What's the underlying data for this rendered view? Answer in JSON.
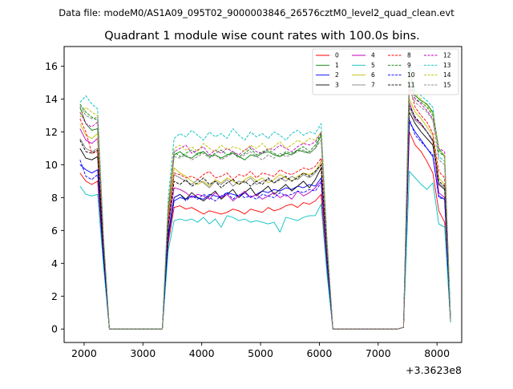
{
  "chart_data": {
    "type": "line",
    "suptitle": "Data file: modeM0/AS1A09_095T02_9000003846_26576cztM0_level2_quad_clean.evt",
    "title": "Quadrant 1 module wise count rates with 100.0s bins.",
    "xlabel": "",
    "ylabel": "",
    "x_offset_label": "+3.3623e8",
    "xlim": [
      1660,
      8420
    ],
    "ylim": [
      -0.82,
      17.2
    ],
    "xticks": [
      2000,
      3000,
      4000,
      5000,
      6000,
      7000,
      8000
    ],
    "xtick_labels": [
      "2000",
      "3000",
      "4000",
      "5000",
      "6000",
      "7000",
      "8000"
    ],
    "yticks": [
      0,
      2,
      4,
      6,
      8,
      10,
      12,
      14,
      16
    ],
    "ytick_labels": [
      "0",
      "2",
      "4",
      "6",
      "8",
      "10",
      "12",
      "14",
      "16"
    ],
    "legend_position": "upper-right",
    "legend_columns": 4,
    "x": [
      1930,
      2030,
      2130,
      2230,
      2330,
      2430,
      2530,
      2630,
      2730,
      2830,
      2930,
      3030,
      3130,
      3230,
      3330,
      3430,
      3530,
      3630,
      3730,
      3830,
      3930,
      4030,
      4130,
      4230,
      4330,
      4430,
      4530,
      4630,
      4730,
      4830,
      4930,
      5030,
      5130,
      5230,
      5330,
      5430,
      5530,
      5630,
      5730,
      5830,
      5930,
      6030,
      6130,
      6230,
      6330,
      6430,
      6530,
      6630,
      6730,
      6830,
      6930,
      7030,
      7130,
      7230,
      7330,
      7430,
      7530,
      7630,
      7730,
      7830,
      7930,
      8030,
      8130,
      8230
    ],
    "series": [
      {
        "name": "0",
        "color": "#ff0000",
        "dash": "solid",
        "values": [
          9.5,
          9.0,
          8.8,
          9.0,
          4.0,
          0,
          0,
          0,
          0,
          0,
          0,
          0,
          0,
          0,
          0,
          5.2,
          7.4,
          7.5,
          7.3,
          7.4,
          7.2,
          7.0,
          7.2,
          7.1,
          7.0,
          7.1,
          7.3,
          7.2,
          7.0,
          7.3,
          7.2,
          7.1,
          7.4,
          7.2,
          7.3,
          7.5,
          7.6,
          7.4,
          7.7,
          7.6,
          7.8,
          8.2,
          3.5,
          0,
          0,
          0,
          0,
          0,
          0,
          0,
          0,
          0,
          0,
          0,
          0,
          0.1,
          12.0,
          11.2,
          10.8,
          10.2,
          9.5,
          7.2,
          6.5,
          0.4
        ]
      },
      {
        "name": "1",
        "color": "#008000",
        "dash": "solid",
        "values": [
          13.5,
          12.5,
          12.1,
          12.2,
          5.0,
          0,
          0,
          0,
          0,
          0,
          0,
          0,
          0,
          0,
          0,
          7.0,
          10.6,
          10.8,
          10.5,
          10.4,
          10.7,
          10.8,
          10.5,
          10.6,
          10.4,
          10.6,
          10.7,
          10.5,
          10.3,
          10.6,
          10.5,
          10.7,
          10.8,
          10.6,
          10.5,
          10.7,
          10.6,
          10.9,
          10.8,
          10.7,
          11.0,
          11.8,
          5.0,
          0,
          0,
          0,
          0,
          0,
          0,
          0,
          0,
          0,
          0,
          0,
          0,
          0.1,
          15.8,
          14.2,
          13.9,
          13.7,
          13.2,
          11.0,
          10.5,
          0.5
        ]
      },
      {
        "name": "2",
        "color": "#0000ff",
        "dash": "solid",
        "values": [
          10.0,
          9.7,
          9.5,
          9.7,
          4.3,
          0,
          0,
          0,
          0,
          0,
          0,
          0,
          0,
          0,
          0,
          5.5,
          7.8,
          8.0,
          7.9,
          8.1,
          8.0,
          7.9,
          8.2,
          8.1,
          8.0,
          8.3,
          8.2,
          8.1,
          8.3,
          8.0,
          8.2,
          8.4,
          8.3,
          8.5,
          8.4,
          8.6,
          8.5,
          8.7,
          8.6,
          8.8,
          8.7,
          9.2,
          4.0,
          0,
          0,
          0,
          0,
          0,
          0,
          0,
          0,
          0,
          0,
          0,
          0,
          0.1,
          12.6,
          12.0,
          11.5,
          11.0,
          10.5,
          8.1,
          7.9,
          0.5
        ]
      },
      {
        "name": "3",
        "color": "#000000",
        "dash": "solid",
        "values": [
          11.0,
          10.4,
          10.3,
          10.5,
          4.6,
          0,
          0,
          0,
          0,
          0,
          0,
          0,
          0,
          0,
          0,
          5.8,
          8.0,
          8.2,
          7.9,
          8.3,
          8.0,
          7.8,
          8.1,
          8.4,
          7.9,
          8.2,
          8.5,
          8.0,
          8.3,
          8.6,
          8.1,
          8.4,
          8.7,
          8.2,
          8.5,
          8.8,
          8.4,
          8.7,
          9.0,
          8.6,
          9.1,
          9.8,
          4.3,
          0,
          0,
          0,
          0,
          0,
          0,
          0,
          0,
          0,
          0,
          0,
          0,
          0.1,
          13.2,
          12.5,
          12.0,
          11.6,
          11.2,
          8.8,
          8.5,
          0.5
        ]
      },
      {
        "name": "4",
        "color": "#c000c0",
        "dash": "solid",
        "values": [
          12.2,
          11.5,
          11.3,
          11.6,
          5.0,
          0,
          0,
          0,
          0,
          0,
          0,
          0,
          0,
          0,
          0,
          6.2,
          8.6,
          8.5,
          8.3,
          8.0,
          8.2,
          8.1,
          7.9,
          8.3,
          8.0,
          8.2,
          7.8,
          8.1,
          8.4,
          8.0,
          8.2,
          7.9,
          8.1,
          8.3,
          8.0,
          8.2,
          7.9,
          8.4,
          8.1,
          8.3,
          8.6,
          9.0,
          4.2,
          0,
          0,
          0,
          0,
          0,
          0,
          0,
          0,
          0,
          0,
          0,
          0,
          0.1,
          13.8,
          12.8,
          12.5,
          12.0,
          11.5,
          8.3,
          8.0,
          0.5
        ]
      },
      {
        "name": "5",
        "color": "#00bfbf",
        "dash": "solid",
        "values": [
          8.7,
          8.2,
          8.1,
          8.2,
          3.8,
          0,
          0,
          0,
          0,
          0,
          0,
          0,
          0,
          0,
          0,
          4.8,
          6.6,
          6.7,
          6.6,
          6.7,
          6.5,
          6.8,
          6.4,
          6.7,
          6.2,
          6.9,
          6.8,
          6.6,
          6.7,
          6.5,
          6.6,
          6.5,
          6.4,
          6.5,
          5.9,
          6.8,
          6.7,
          6.6,
          6.8,
          6.9,
          6.9,
          7.6,
          3.3,
          0,
          0,
          0,
          0,
          0,
          0,
          0,
          0,
          0,
          0,
          0,
          0,
          0.1,
          9.6,
          9.2,
          8.8,
          8.5,
          8.9,
          6.4,
          6.2,
          0.4
        ]
      },
      {
        "name": "6",
        "color": "#bfbf00",
        "dash": "solid",
        "values": [
          12.5,
          11.8,
          11.6,
          11.9,
          5.1,
          0,
          0,
          0,
          0,
          0,
          0,
          0,
          0,
          0,
          0,
          6.8,
          9.8,
          9.5,
          9.3,
          9.0,
          8.8,
          9.0,
          8.7,
          9.1,
          8.9,
          9.2,
          9.0,
          8.8,
          9.1,
          9.3,
          9.0,
          9.2,
          8.9,
          9.1,
          9.4,
          9.2,
          9.0,
          9.3,
          9.5,
          9.4,
          9.6,
          10.2,
          4.5,
          0,
          0,
          0,
          0,
          0,
          0,
          0,
          0,
          0,
          0,
          0,
          0,
          0.1,
          14.0,
          13.2,
          12.8,
          12.3,
          11.8,
          9.2,
          8.8,
          0.5
        ]
      },
      {
        "name": "7",
        "color": "#808080",
        "dash": "solid",
        "values": [
          11.6,
          11.0,
          10.8,
          11.0,
          4.8,
          0,
          0,
          0,
          0,
          0,
          0,
          0,
          0,
          0,
          0,
          6.5,
          9.4,
          9.2,
          9.0,
          8.8,
          9.1,
          8.9,
          8.6,
          9.0,
          8.8,
          9.1,
          8.7,
          9.0,
          8.9,
          9.2,
          8.8,
          9.0,
          9.1,
          8.9,
          9.2,
          9.0,
          9.3,
          9.1,
          9.4,
          9.2,
          9.5,
          10.0,
          4.4,
          0,
          0,
          0,
          0,
          0,
          0,
          0,
          0,
          0,
          0,
          0,
          0,
          0.1,
          13.5,
          12.7,
          12.4,
          12.0,
          11.4,
          8.9,
          8.6,
          0.5
        ]
      },
      {
        "name": "8",
        "color": "#ff0000",
        "dash": "dashed",
        "values": [
          12.8,
          12.0,
          10.7,
          10.8,
          4.7,
          0,
          0,
          0,
          0,
          0,
          0,
          0,
          0,
          0,
          0,
          6.6,
          9.5,
          9.4,
          9.2,
          9.3,
          9.1,
          9.4,
          9.6,
          9.2,
          9.3,
          9.5,
          9.1,
          9.4,
          9.3,
          9.6,
          9.2,
          9.5,
          9.4,
          9.3,
          9.7,
          9.5,
          9.4,
          9.6,
          9.8,
          9.7,
          9.9,
          10.4,
          4.6,
          0,
          0,
          0,
          0,
          0,
          0,
          0,
          0,
          0,
          0,
          0,
          0,
          0.1,
          14.8,
          13.5,
          13.0,
          12.6,
          11.9,
          9.6,
          9.2,
          0.5
        ]
      },
      {
        "name": "9",
        "color": "#008000",
        "dash": "dashed",
        "values": [
          13.7,
          13.2,
          12.9,
          12.7,
          5.4,
          0,
          0,
          0,
          0,
          0,
          0,
          0,
          0,
          0,
          0,
          7.4,
          10.8,
          10.5,
          10.7,
          10.9,
          10.6,
          10.8,
          10.5,
          10.7,
          10.9,
          10.6,
          10.8,
          10.5,
          10.7,
          11.0,
          10.6,
          10.8,
          10.9,
          10.7,
          10.5,
          10.8,
          10.7,
          10.9,
          11.1,
          10.8,
          11.2,
          11.9,
          5.2,
          0,
          0,
          0,
          0,
          0,
          0,
          0,
          0,
          0,
          0,
          0,
          0,
          0.1,
          15.2,
          14.0,
          13.8,
          13.5,
          13.0,
          10.8,
          10.5,
          0.5
        ]
      },
      {
        "name": "10",
        "color": "#0000ff",
        "dash": "dashed",
        "values": [
          10.3,
          9.3,
          9.1,
          9.4,
          4.2,
          0,
          0,
          0,
          0,
          0,
          0,
          0,
          0,
          0,
          0,
          5.6,
          8.0,
          8.2,
          7.8,
          8.1,
          7.9,
          8.2,
          8.0,
          7.8,
          8.1,
          8.3,
          7.9,
          8.2,
          8.0,
          8.1,
          7.9,
          8.2,
          8.1,
          8.0,
          8.3,
          8.1,
          8.2,
          8.4,
          8.3,
          8.5,
          8.4,
          8.9,
          4.0,
          0,
          0,
          0,
          0,
          0,
          0,
          0,
          0,
          0,
          0,
          0,
          0,
          0.1,
          12.8,
          11.8,
          11.4,
          11.0,
          10.6,
          8.0,
          7.9,
          0.5
        ]
      },
      {
        "name": "11",
        "color": "#000000",
        "dash": "dashed",
        "values": [
          11.5,
          10.8,
          10.7,
          10.9,
          4.7,
          0,
          0,
          0,
          0,
          0,
          0,
          0,
          0,
          0,
          0,
          6.3,
          9.0,
          8.8,
          9.1,
          8.7,
          8.9,
          9.2,
          8.8,
          9.0,
          8.6,
          8.9,
          9.1,
          8.8,
          9.0,
          8.7,
          9.0,
          8.8,
          9.2,
          8.9,
          9.1,
          9.3,
          9.0,
          9.2,
          9.5,
          9.3,
          9.6,
          10.0,
          4.4,
          0,
          0,
          0,
          0,
          0,
          0,
          0,
          0,
          0,
          0,
          0,
          0,
          0.1,
          13.6,
          12.9,
          12.5,
          12.0,
          11.5,
          9.0,
          8.7,
          0.5
        ]
      },
      {
        "name": "12",
        "color": "#c000c0",
        "dash": "dashed",
        "values": [
          13.2,
          12.5,
          12.3,
          12.6,
          5.3,
          0,
          0,
          0,
          0,
          0,
          0,
          0,
          0,
          0,
          0,
          7.2,
          10.8,
          11.0,
          11.2,
          10.7,
          10.9,
          11.1,
          10.6,
          10.9,
          10.7,
          11.0,
          10.8,
          10.6,
          10.9,
          11.1,
          10.8,
          10.7,
          11.0,
          10.9,
          11.2,
          11.0,
          10.8,
          11.1,
          11.3,
          11.2,
          11.4,
          12.0,
          5.2,
          0,
          0,
          0,
          0,
          0,
          0,
          0,
          0,
          0,
          0,
          0,
          0,
          0.1,
          15.0,
          14.0,
          13.7,
          13.3,
          12.8,
          11.0,
          10.8,
          0.5
        ]
      },
      {
        "name": "13",
        "color": "#00bfbf",
        "dash": "dashed",
        "values": [
          13.8,
          14.2,
          13.7,
          13.4,
          5.6,
          0,
          0,
          0,
          0,
          0,
          0,
          0,
          0,
          0,
          0,
          8.0,
          11.6,
          11.9,
          11.7,
          12.1,
          11.8,
          11.5,
          12.0,
          11.7,
          11.9,
          11.6,
          12.2,
          11.8,
          11.5,
          12.0,
          11.7,
          11.9,
          11.6,
          12.0,
          11.8,
          11.5,
          11.9,
          12.1,
          11.8,
          12.0,
          11.9,
          12.5,
          5.5,
          0,
          0,
          0,
          0,
          0,
          0,
          0,
          0,
          0,
          0,
          0,
          0,
          0.1,
          16.2,
          14.5,
          14.2,
          13.9,
          13.5,
          10.5,
          10.2,
          0.5
        ]
      },
      {
        "name": "14",
        "color": "#bfbf00",
        "dash": "dashed",
        "values": [
          12.9,
          13.5,
          13.2,
          13.0,
          5.5,
          0,
          0,
          0,
          0,
          0,
          0,
          0,
          0,
          0,
          0,
          7.5,
          11.0,
          11.2,
          10.9,
          11.1,
          10.8,
          11.3,
          11.0,
          10.8,
          11.2,
          10.9,
          11.1,
          11.0,
          10.8,
          11.2,
          11.0,
          11.3,
          10.9,
          11.1,
          11.4,
          11.0,
          11.2,
          11.5,
          11.3,
          11.6,
          11.5,
          12.0,
          5.3,
          0,
          0,
          0,
          0,
          0,
          0,
          0,
          0,
          0,
          0,
          0,
          0,
          0.1,
          15.5,
          14.3,
          14.0,
          13.6,
          13.1,
          10.9,
          10.6,
          0.5
        ]
      },
      {
        "name": "15",
        "color": "#808080",
        "dash": "dashed",
        "values": [
          13.6,
          13.0,
          12.8,
          12.9,
          5.4,
          0,
          0,
          0,
          0,
          0,
          0,
          0,
          0,
          0,
          0,
          7.3,
          10.5,
          10.4,
          10.6,
          10.3,
          10.5,
          10.7,
          10.4,
          10.6,
          10.3,
          10.5,
          10.7,
          10.4,
          10.6,
          10.8,
          10.5,
          10.3,
          10.6,
          10.4,
          10.7,
          10.5,
          10.6,
          10.8,
          10.9,
          10.7,
          11.0,
          11.5,
          5.0,
          0,
          0,
          0,
          0,
          0,
          0,
          0,
          0,
          0,
          0,
          0,
          0,
          0.1,
          14.6,
          13.8,
          13.5,
          13.2,
          12.7,
          10.3,
          10.0,
          0.5
        ]
      }
    ]
  }
}
